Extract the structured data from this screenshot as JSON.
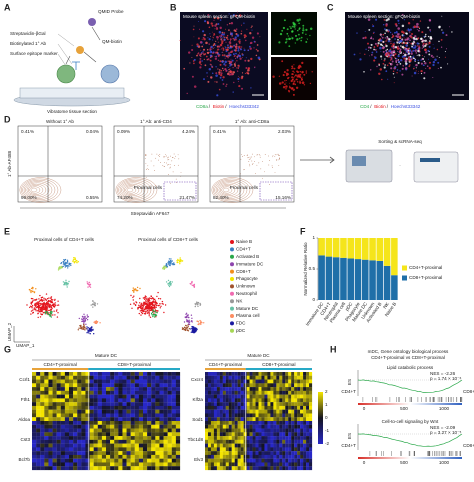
{
  "panel_labels": [
    "A",
    "B",
    "C",
    "D",
    "E",
    "F",
    "G",
    "H"
  ],
  "a": {
    "probe": "QMID Probe",
    "streptavidin": "Streptavidin-βGal",
    "primary_ab": "Biotinylated 1° Ab",
    "epitope": "Surface epitope marker",
    "qm_biotin": "QM-biotin",
    "section": "Vibratome tissue section"
  },
  "b": {
    "title": "Mouse spleen section: gFQM-biotin",
    "stains": [
      "CD8a",
      "Biotin",
      "Hoechst33342"
    ]
  },
  "c": {
    "title": "Mouse spleen section: gFQM-biotin",
    "stains": [
      "CD4",
      "Biotin",
      "Hoechst33342"
    ]
  },
  "d": {
    "plots": [
      {
        "title": "Without 1° Ab",
        "quadrants": [
          "0.41%",
          "0.04%",
          "99.00%",
          "0.55%"
        ]
      },
      {
        "title": "1° Ab: anti-CD4",
        "quadrants": [
          "0.09%",
          "4.24%",
          "74.20%",
          "21.47%"
        ],
        "gate": "Proximal cells"
      },
      {
        "title": "1° Ab: anti-CD8a",
        "quadrants": [
          "0.41%",
          "2.03%",
          "82.40%",
          "15.16%"
        ],
        "gate": "Proximal cells"
      }
    ],
    "y_label": "1° Ab-AF488",
    "x_label": "Streptavidin AF647",
    "next_step": "Sorting & scRNA-seq"
  },
  "e": {
    "titles": [
      "Proximal cells of CD4+T cells",
      "Proximal cells of CD8+T cells"
    ],
    "x_label": "UMAP_1",
    "y_label": "UMAP_2",
    "cell_types": [
      {
        "name": "Naive B",
        "color": "#e3141c"
      },
      {
        "name": "CD4+T",
        "color": "#3a7fc1"
      },
      {
        "name": "Activated B",
        "color": "#2aa84a"
      },
      {
        "name": "Immature DC",
        "color": "#8e44ad"
      },
      {
        "name": "CD8+T",
        "color": "#f28e1c"
      },
      {
        "name": "Phagocyte",
        "color": "#f2e600"
      },
      {
        "name": "Unknown",
        "color": "#a0522d"
      },
      {
        "name": "Neutrophil",
        "color": "#f06ab0"
      },
      {
        "name": "NK",
        "color": "#999999"
      },
      {
        "name": "Mature DC",
        "color": "#66c2a5"
      },
      {
        "name": "Plasma cell",
        "color": "#fc8d62"
      },
      {
        "name": "FDC",
        "color": "#1a1aa0"
      },
      {
        "name": "pDC",
        "color": "#a6d854"
      }
    ]
  },
  "chart_data": {
    "type": "stacked-bar",
    "y_label": "Normalized Relative Ratio",
    "categories": [
      "Immature DC",
      "CD4+T",
      "Neutrophil",
      "Plasma cell",
      "pDC",
      "Phagocyte",
      "Mature DC",
      "Unknown",
      "Activated B",
      "NK",
      "Naive B"
    ],
    "series": [
      {
        "name": "CD8+T-proximal",
        "color": "#1f6fa8",
        "values": [
          0.72,
          0.7,
          0.69,
          0.68,
          0.67,
          0.66,
          0.65,
          0.64,
          0.63,
          0.55,
          0.4
        ]
      },
      {
        "name": "CD4+T-proximal",
        "color": "#f5e51b",
        "values": [
          0.28,
          0.3,
          0.31,
          0.32,
          0.33,
          0.34,
          0.35,
          0.36,
          0.37,
          0.45,
          0.6
        ]
      }
    ],
    "legend_order": [
      1,
      0
    ],
    "ylim": [
      0,
      1
    ],
    "yticks": [
      0,
      0.5,
      1
    ]
  },
  "g": {
    "heatmaps": [
      {
        "title": "Mature DC",
        "groups": [
          "CD4+T-proximal",
          "CD8+T-proximal"
        ],
        "genes": [
          "Ccrl1",
          "Fth1",
          "Aldoa",
          "Cst3",
          "Bcl7b"
        ]
      },
      {
        "title": "Mature DC",
        "groups": [
          "CD4+T-proximal",
          "CD8+T-proximal"
        ],
        "genes": [
          "Cxcr4",
          "Klf2a",
          "Sod1",
          "Tbc1d8",
          "Elv3"
        ]
      }
    ],
    "colorbar_ticks": [
      2,
      1,
      0,
      -1,
      -2
    ]
  },
  "h": {
    "title": [
      "mDC, Gene ontology biological process",
      "CD4+T-proximal vs CD8+T-proximal"
    ],
    "y_label": "ES",
    "x_ticks": [
      "0",
      "500",
      "1000"
    ],
    "plots": [
      {
        "term": "Lipid catabolic process",
        "nes": "NES = -2.26",
        "p": "p = 1.74 × 10⁻⁶",
        "left": "CD4+T",
        "right": "CD8+T"
      },
      {
        "term": "Cell-to-cell signaling by Wnt",
        "nes": "NES = -2.09",
        "p": "p = 3.27 × 10⁻⁵",
        "left": "CD4+T",
        "right": "CD8+T"
      }
    ]
  }
}
